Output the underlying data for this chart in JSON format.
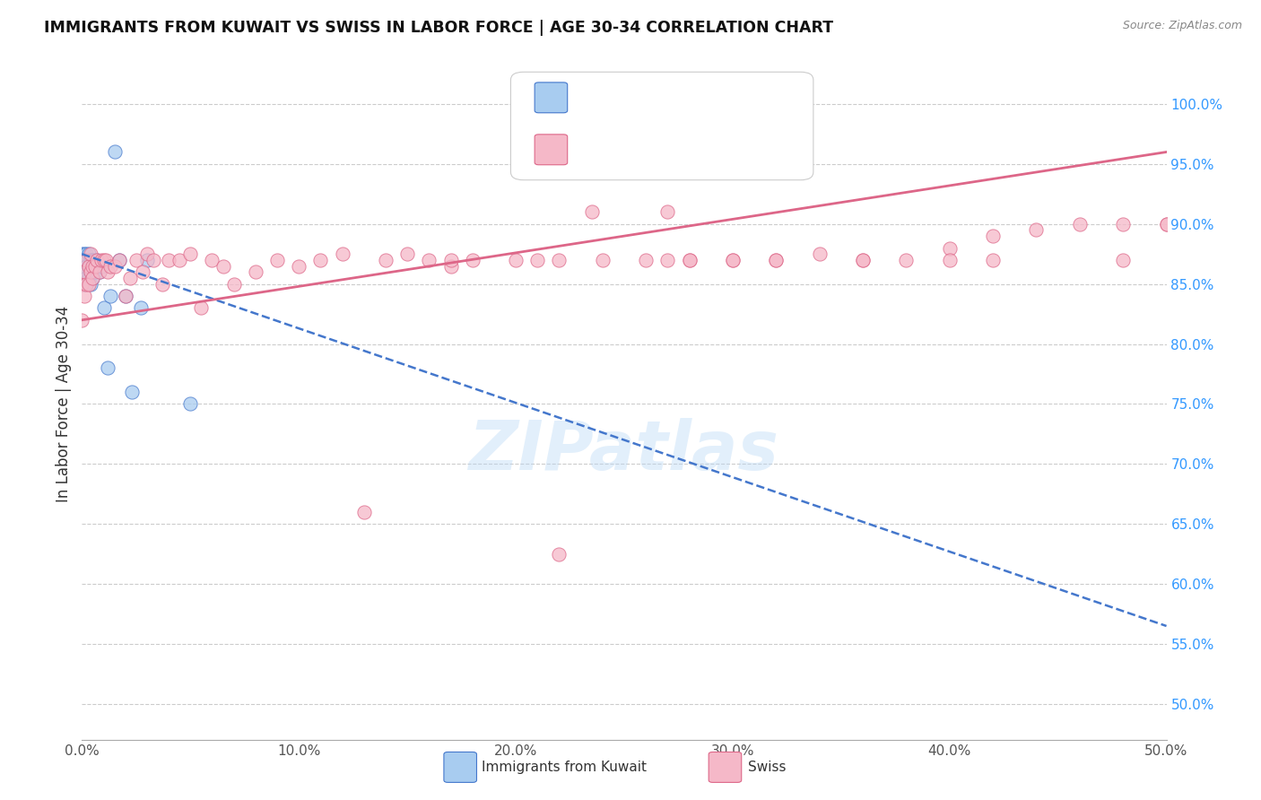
{
  "title": "IMMIGRANTS FROM KUWAIT VS SWISS IN LABOR FORCE | AGE 30-34 CORRELATION CHART",
  "source": "Source: ZipAtlas.com",
  "ylabel": "In Labor Force | Age 30-34",
  "x_ticks": [
    0.0,
    0.1,
    0.2,
    0.3,
    0.4,
    0.5
  ],
  "x_tick_labels": [
    "0.0%",
    "10.0%",
    "20.0%",
    "30.0%",
    "40.0%",
    "50.0%"
  ],
  "y_ticks": [
    0.5,
    0.55,
    0.6,
    0.65,
    0.7,
    0.75,
    0.8,
    0.85,
    0.9,
    0.95,
    1.0
  ],
  "y_tick_labels_right": [
    "50.0%",
    "55.0%",
    "60.0%",
    "65.0%",
    "70.0%",
    "75.0%",
    "80.0%",
    "85.0%",
    "90.0%",
    "95.0%",
    "100.0%"
  ],
  "xlim": [
    0.0,
    0.5
  ],
  "ylim": [
    0.47,
    1.03
  ],
  "kuwait_color": "#a8ccf0",
  "swiss_color": "#f5b8c8",
  "kuwait_trend_color": "#4477cc",
  "swiss_trend_color": "#dd6688",
  "watermark": "ZIPatlas",
  "kuwait_trend_x0": 0.0,
  "kuwait_trend_y0": 0.875,
  "kuwait_trend_x1": 0.5,
  "kuwait_trend_y1": 0.565,
  "swiss_trend_x0": 0.0,
  "swiss_trend_y0": 0.82,
  "swiss_trend_x1": 0.5,
  "swiss_trend_y1": 0.96,
  "kuwait_x": [
    0.0,
    0.0,
    0.0,
    0.001,
    0.001,
    0.001,
    0.001,
    0.001,
    0.001,
    0.002,
    0.002,
    0.002,
    0.002,
    0.002,
    0.003,
    0.003,
    0.003,
    0.004,
    0.004,
    0.004,
    0.005,
    0.005,
    0.006,
    0.006,
    0.007,
    0.008,
    0.009,
    0.01,
    0.012,
    0.013,
    0.015,
    0.017,
    0.02,
    0.023,
    0.027,
    0.03,
    0.05
  ],
  "kuwait_y": [
    0.875,
    0.87,
    0.865,
    0.875,
    0.87,
    0.865,
    0.86,
    0.855,
    0.85,
    0.875,
    0.87,
    0.865,
    0.86,
    0.855,
    0.875,
    0.865,
    0.855,
    0.87,
    0.86,
    0.85,
    0.87,
    0.855,
    0.87,
    0.86,
    0.87,
    0.86,
    0.865,
    0.83,
    0.78,
    0.84,
    0.96,
    0.87,
    0.84,
    0.76,
    0.83,
    0.87,
    0.75
  ],
  "swiss_x": [
    0.0,
    0.0,
    0.001,
    0.001,
    0.002,
    0.002,
    0.003,
    0.003,
    0.004,
    0.004,
    0.005,
    0.005,
    0.006,
    0.007,
    0.008,
    0.009,
    0.01,
    0.011,
    0.012,
    0.013,
    0.015,
    0.017,
    0.02,
    0.022,
    0.025,
    0.028,
    0.03,
    0.033,
    0.037,
    0.04,
    0.045,
    0.05,
    0.055,
    0.06,
    0.065,
    0.07,
    0.08,
    0.09,
    0.1,
    0.11,
    0.12,
    0.13,
    0.14,
    0.15,
    0.16,
    0.17,
    0.18,
    0.2,
    0.21,
    0.22,
    0.24,
    0.26,
    0.28,
    0.3,
    0.32,
    0.34,
    0.36,
    0.38,
    0.4,
    0.42,
    0.44,
    0.46,
    0.48,
    0.5,
    0.5
  ],
  "swiss_y": [
    0.82,
    0.85,
    0.84,
    0.86,
    0.85,
    0.87,
    0.85,
    0.865,
    0.86,
    0.875,
    0.865,
    0.855,
    0.865,
    0.87,
    0.86,
    0.87,
    0.87,
    0.87,
    0.86,
    0.865,
    0.865,
    0.87,
    0.84,
    0.855,
    0.87,
    0.86,
    0.875,
    0.87,
    0.85,
    0.87,
    0.87,
    0.875,
    0.83,
    0.87,
    0.865,
    0.85,
    0.86,
    0.87,
    0.865,
    0.87,
    0.875,
    0.66,
    0.87,
    0.875,
    0.87,
    0.865,
    0.87,
    0.87,
    0.87,
    0.625,
    0.87,
    0.87,
    0.87,
    0.87,
    0.87,
    0.875,
    0.87,
    0.87,
    0.88,
    0.89,
    0.895,
    0.9,
    0.9,
    0.9,
    0.9
  ],
  "swiss_extra_x": [
    0.17,
    0.22,
    0.235,
    0.27,
    0.27,
    0.28,
    0.3,
    0.32,
    0.36,
    0.4,
    0.42,
    0.48
  ],
  "swiss_extra_y": [
    0.87,
    0.87,
    0.91,
    0.87,
    0.91,
    0.87,
    0.87,
    0.87,
    0.87,
    0.87,
    0.87,
    0.87
  ]
}
